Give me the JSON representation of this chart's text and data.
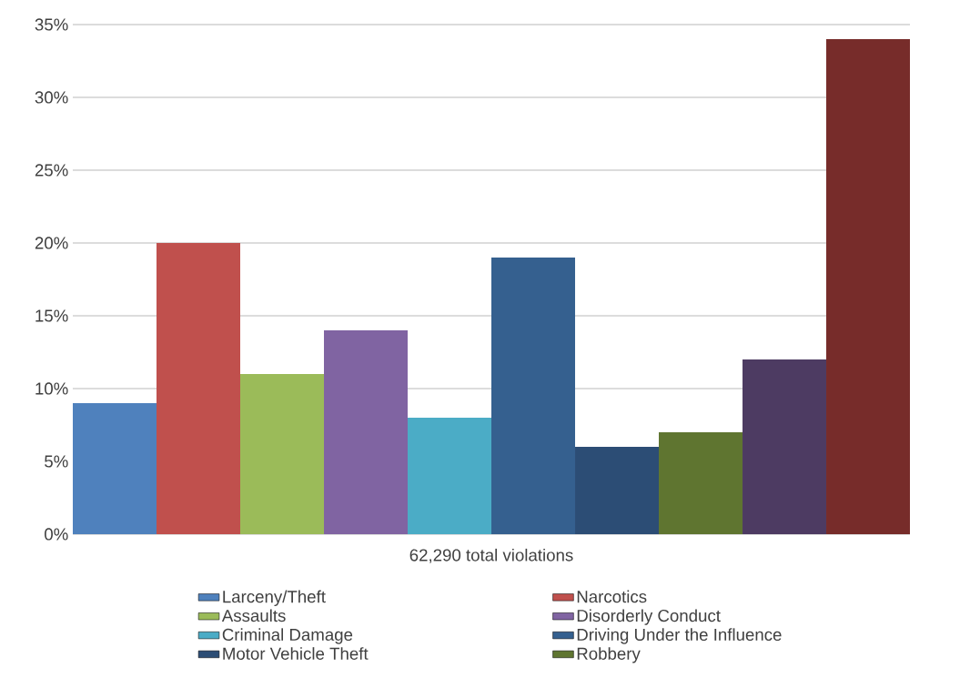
{
  "chart_data": {
    "type": "bar",
    "xlabel": "62,290 total violations",
    "categories": [
      null,
      null,
      null,
      null,
      null,
      null,
      null,
      null,
      null,
      null
    ],
    "series": [
      {
        "name": "Larceny/Theft",
        "color": "#4f81bd",
        "values": [
          9,
          null,
          null,
          null,
          null,
          null,
          null,
          null,
          null,
          null
        ]
      },
      {
        "name": "Narcotics",
        "color": "#c0504d",
        "values": [
          null,
          20,
          null,
          null,
          null,
          null,
          null,
          null,
          null,
          null
        ]
      },
      {
        "name": "Assaults",
        "color": "#9bbb59",
        "values": [
          null,
          null,
          11,
          null,
          null,
          null,
          null,
          null,
          null,
          null
        ]
      },
      {
        "name": "Disorderly Conduct",
        "color": "#8064a2",
        "values": [
          null,
          null,
          null,
          14,
          null,
          null,
          null,
          null,
          null,
          null
        ]
      },
      {
        "name": "Criminal Damage",
        "color": "#4bacc6",
        "values": [
          null,
          null,
          null,
          null,
          8,
          null,
          null,
          null,
          null,
          null
        ]
      },
      {
        "name": "Driving Under the Influence",
        "color": "#35608f",
        "values": [
          null,
          null,
          null,
          null,
          null,
          19,
          null,
          null,
          null,
          null
        ]
      },
      {
        "name": "Motor Vehicle Theft",
        "color": "#2c4d75",
        "values": [
          null,
          null,
          null,
          null,
          null,
          null,
          6,
          null,
          null,
          null
        ]
      },
      {
        "name": "Robbery",
        "color": "#5f7530",
        "values": [
          null,
          null,
          null,
          null,
          null,
          null,
          null,
          7,
          null,
          null
        ]
      },
      {
        "color": "#4d3b62",
        "values": [
          null,
          null,
          null,
          null,
          null,
          null,
          null,
          null,
          12,
          null
        ]
      },
      {
        "color": "#772c2a",
        "values": [
          null,
          null,
          null,
          null,
          null,
          null,
          null,
          null,
          null,
          34
        ]
      }
    ],
    "stacked": true,
    "ylim": [
      0,
      35
    ],
    "yticks": [
      {
        "value": 0,
        "label": "0%"
      },
      {
        "value": 5,
        "label": "5%"
      },
      {
        "value": 10,
        "label": "10%"
      },
      {
        "value": 15,
        "label": "15%"
      },
      {
        "value": 20,
        "label": "20%"
      },
      {
        "value": 25,
        "label": "25%"
      },
      {
        "value": 30,
        "label": "30%"
      },
      {
        "value": 35,
        "label": "35%"
      }
    ],
    "grid": "y",
    "legend": "bottom",
    "tick_labels": "y"
  }
}
